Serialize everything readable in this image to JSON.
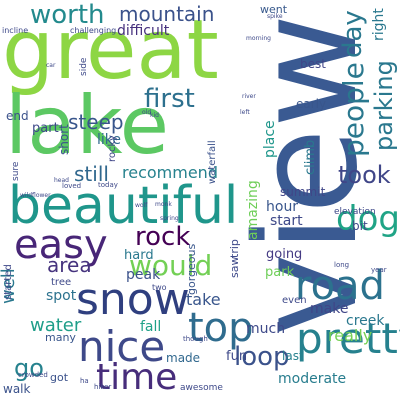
{
  "words": [
    {
      "text": "view",
      "weight": 100,
      "color": "#3a5a92",
      "vertical": true
    },
    {
      "text": "great",
      "weight": 88,
      "color": "#8dd644",
      "vertical": false
    },
    {
      "text": "lake",
      "weight": 80,
      "color": "#5cc863",
      "vertical": false
    },
    {
      "text": "beautiful",
      "weight": 66,
      "color": "#1f968b",
      "vertical": false
    },
    {
      "text": "snow",
      "weight": 50,
      "color": "#2f3f7f",
      "vertical": false
    },
    {
      "text": "nice",
      "weight": 48,
      "color": "#3e4989",
      "vertical": false
    },
    {
      "text": "top",
      "weight": 46,
      "color": "#2f6c8e",
      "vertical": false
    },
    {
      "text": "easy",
      "weight": 44,
      "color": "#482677",
      "vertical": false
    },
    {
      "text": "time",
      "weight": 42,
      "color": "#472d7b",
      "vertical": false
    },
    {
      "text": "pretty",
      "weight": 42,
      "color": "#26818e",
      "vertical": false
    },
    {
      "text": "road",
      "weight": 40,
      "color": "#2c728e",
      "vertical": false
    },
    {
      "text": "would",
      "weight": 36,
      "color": "#73d055",
      "vertical": false
    },
    {
      "text": "dog",
      "weight": 35,
      "color": "#20a486",
      "vertical": false
    },
    {
      "text": "people",
      "weight": 33,
      "color": "#2a788e",
      "vertical": true
    },
    {
      "text": "first",
      "weight": 30,
      "color": "#2d708e",
      "vertical": false
    },
    {
      "text": "worth",
      "weight": 30,
      "color": "#238a8d",
      "vertical": false
    },
    {
      "text": "loop",
      "weight": 28,
      "color": "#3b528b",
      "vertical": false
    },
    {
      "text": "rock",
      "weight": 28,
      "color": "#440154",
      "vertical": false
    },
    {
      "text": "mountain",
      "weight": 26,
      "color": "#3b528b",
      "vertical": false
    },
    {
      "text": "day",
      "weight": 26,
      "color": "#2a788e",
      "vertical": true
    },
    {
      "text": "parking",
      "weight": 25,
      "color": "#2a788e",
      "vertical": true
    },
    {
      "text": "go",
      "weight": 24,
      "color": "#26828e",
      "vertical": false
    },
    {
      "text": "took",
      "weight": 24,
      "color": "#404688",
      "vertical": false
    },
    {
      "text": "steep",
      "weight": 22,
      "color": "#39568c",
      "vertical": false
    },
    {
      "text": "area",
      "weight": 22,
      "color": "#46337e",
      "vertical": false
    },
    {
      "text": "still",
      "weight": 22,
      "color": "#31688e",
      "vertical": false
    },
    {
      "text": "water",
      "weight": 20,
      "color": "#1f9e89",
      "vertical": false
    },
    {
      "text": "well",
      "weight": 20,
      "color": "#2a788e",
      "vertical": true
    },
    {
      "text": "really",
      "weight": 18,
      "color": "#75d054",
      "vertical": false
    },
    {
      "text": "recommend",
      "weight": 18,
      "color": "#26828e",
      "vertical": false
    },
    {
      "text": "take",
      "weight": 18,
      "color": "#39568c",
      "vertical": false
    },
    {
      "text": "moderate",
      "weight": 16,
      "color": "#287d8e",
      "vertical": false
    },
    {
      "text": "creek",
      "weight": 16,
      "color": "#2a788e",
      "vertical": false
    },
    {
      "text": "amazing",
      "weight": 16,
      "color": "#6ece58",
      "vertical": true
    },
    {
      "text": "right",
      "weight": 15,
      "color": "#2a788e",
      "vertical": true
    },
    {
      "text": "spot",
      "weight": 15,
      "color": "#2c728e",
      "vertical": false
    },
    {
      "text": "place",
      "weight": 15,
      "color": "#1f968b",
      "vertical": true
    },
    {
      "text": "make",
      "weight": 15,
      "color": "#404688",
      "vertical": false
    },
    {
      "text": "difficult",
      "weight": 15,
      "color": "#46307e",
      "vertical": false
    },
    {
      "text": "like",
      "weight": 14,
      "color": "#31688e",
      "vertical": false
    },
    {
      "text": "fall",
      "weight": 14,
      "color": "#1fa187",
      "vertical": false
    },
    {
      "text": "hour",
      "weight": 14,
      "color": "#39568c",
      "vertical": false
    },
    {
      "text": "start",
      "weight": 14,
      "color": "#3e4989",
      "vertical": false
    },
    {
      "text": "peak",
      "weight": 14,
      "color": "#3b528b",
      "vertical": false
    },
    {
      "text": "much",
      "weight": 14,
      "color": "#3e4989",
      "vertical": false
    },
    {
      "text": "park",
      "weight": 13,
      "color": "#6ece58",
      "vertical": false
    },
    {
      "text": "part",
      "weight": 13,
      "color": "#3e4989",
      "vertical": false
    },
    {
      "text": "hard",
      "weight": 13,
      "color": "#2a788e",
      "vertical": false
    },
    {
      "text": "going",
      "weight": 13,
      "color": "#443a83",
      "vertical": false
    },
    {
      "text": "climb",
      "weight": 13,
      "color": "#2a788e",
      "vertical": true
    },
    {
      "text": "fun",
      "weight": 13,
      "color": "#3e4989",
      "vertical": false
    },
    {
      "text": "summit",
      "weight": 12,
      "color": "#404688",
      "vertical": false
    },
    {
      "text": "end",
      "weight": 12,
      "color": "#3b528b",
      "vertical": false
    },
    {
      "text": "early",
      "weight": 12,
      "color": "#39568c",
      "vertical": false
    },
    {
      "text": "best",
      "weight": 12,
      "color": "#404688",
      "vertical": false
    },
    {
      "text": "bit",
      "weight": 12,
      "color": "#3e4989",
      "vertical": false
    },
    {
      "text": "short",
      "weight": 12,
      "color": "#3b528b",
      "vertical": true
    },
    {
      "text": "last",
      "weight": 12,
      "color": "#26818e",
      "vertical": false
    },
    {
      "text": "walk",
      "weight": 12,
      "color": "#3b528b",
      "vertical": false
    },
    {
      "text": "made",
      "weight": 12,
      "color": "#31688e",
      "vertical": false
    },
    {
      "text": "went",
      "weight": 11,
      "color": "#38598c",
      "vertical": false
    },
    {
      "text": "gorgeous",
      "weight": 11,
      "color": "#39568c",
      "vertical": true
    },
    {
      "text": "trip",
      "weight": 11,
      "color": "#3e4989",
      "vertical": true
    },
    {
      "text": "saw",
      "weight": 11,
      "color": "#3e4989",
      "vertical": true
    },
    {
      "text": "many",
      "weight": 11,
      "color": "#39568c",
      "vertical": false
    },
    {
      "text": "got",
      "weight": 11,
      "color": "#3b528b",
      "vertical": false
    },
    {
      "text": "waterfall",
      "weight": 10,
      "color": "#3b528b",
      "vertical": true
    },
    {
      "text": "started",
      "weight": 10,
      "color": "#3e4989",
      "vertical": true
    },
    {
      "text": "tree",
      "weight": 10,
      "color": "#3e4989",
      "vertical": false
    },
    {
      "text": "even",
      "weight": 10,
      "color": "#3e4989",
      "vertical": false
    },
    {
      "text": "rocky",
      "weight": 10,
      "color": "#404688",
      "vertical": true
    },
    {
      "text": "awesome",
      "weight": 9,
      "color": "#3e4989",
      "vertical": false
    },
    {
      "text": "sure",
      "weight": 9,
      "color": "#3e4989",
      "vertical": true
    },
    {
      "text": "side",
      "weight": 9,
      "color": "#3e4989",
      "vertical": true
    },
    {
      "text": "elevation",
      "weight": 9,
      "color": "#3e4989",
      "vertical": false
    },
    {
      "text": "challenging",
      "weight": 8,
      "color": "#3e4989",
      "vertical": false
    },
    {
      "text": "incline",
      "weight": 8,
      "color": "#3e4989",
      "vertical": false
    },
    {
      "text": "two",
      "weight": 8,
      "color": "#3e4989",
      "vertical": false
    },
    {
      "text": "long",
      "weight": 7,
      "color": "#3e4989",
      "vertical": false
    },
    {
      "text": "year",
      "weight": 7,
      "color": "#3e4989",
      "vertical": false
    },
    {
      "text": "ha",
      "weight": 7,
      "color": "#3e4989",
      "vertical": false
    },
    {
      "text": "hiker",
      "weight": 7,
      "color": "#3e4989",
      "vertical": false
    },
    {
      "text": "crowded",
      "weight": 7,
      "color": "#3e4989",
      "vertical": false
    },
    {
      "text": "though",
      "weight": 7,
      "color": "#3e4989",
      "vertical": false
    },
    {
      "text": "loved",
      "weight": 7,
      "color": "#3e4989",
      "vertical": false
    },
    {
      "text": "today",
      "weight": 7,
      "color": "#3e4989",
      "vertical": false
    },
    {
      "text": "head",
      "weight": 6,
      "color": "#3e4989",
      "vertical": false
    },
    {
      "text": "wildflower",
      "weight": 6,
      "color": "#3e4989",
      "vertical": false
    },
    {
      "text": "spring",
      "weight": 6,
      "color": "#3e4989",
      "vertical": false
    },
    {
      "text": "river",
      "weight": 6,
      "color": "#3e4989",
      "vertical": false
    },
    {
      "text": "left",
      "weight": 6,
      "color": "#3e4989",
      "vertical": false
    },
    {
      "text": "morning",
      "weight": 6,
      "color": "#3e4989",
      "vertical": false
    },
    {
      "text": "spike",
      "weight": 6,
      "color": "#3e4989",
      "vertical": false
    },
    {
      "text": "kid",
      "weight": 6,
      "color": "#3e4989",
      "vertical": false
    },
    {
      "text": "old",
      "weight": 6,
      "color": "#3e4989",
      "vertical": false
    },
    {
      "text": "car",
      "weight": 6,
      "color": "#3e4989",
      "vertical": false
    },
    {
      "text": "wolf",
      "weight": 6,
      "color": "#3e4989",
      "vertical": false
    },
    {
      "text": "monk",
      "weight": 6,
      "color": "#3e4989",
      "vertical": false
    }
  ]
}
